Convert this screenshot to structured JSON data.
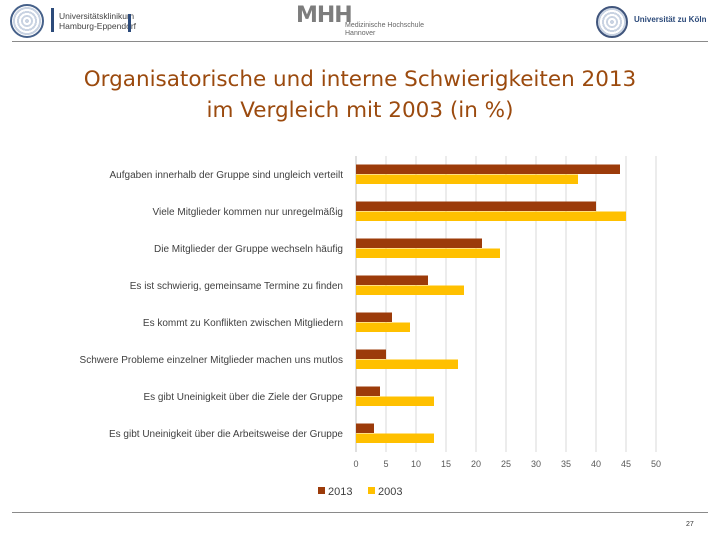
{
  "header": {
    "uke_text": "Universitätsklinikum\nHamburg-Eppendorf",
    "mhh_mark": "MHH",
    "mhh_text": "Medizinische Hochschule\nHannover",
    "koeln_text": "Universität zu Köln"
  },
  "slide": {
    "title_line1": "Organisatorische und interne Schwierigkeiten 2013",
    "title_line2": "im Vergleich mit 2003 (in %)",
    "page_number": "27"
  },
  "colors": {
    "series_2013": "#9c3b0a",
    "series_2003": "#ffc000",
    "title": "#9b4a0e",
    "grid": "#d9d9d9"
  },
  "chart_data": {
    "type": "bar",
    "orientation": "horizontal",
    "title": "Organisatorische und interne Schwierigkeiten 2013 im Vergleich mit 2003 (in %)",
    "categories": [
      "Aufgaben innerhalb der Gruppe sind ungleich verteilt",
      "Viele Mitglieder kommen nur unregelmäßig",
      "Die Mitglieder der Gruppe wechseln häufig",
      "Es ist schwierig, gemeinsame Termine zu finden",
      "Es kommt zu Konflikten zwischen Mitgliedern",
      "Schwere Probleme einzelner Mitglieder machen uns mutlos",
      "Es gibt Uneinigkeit über die Ziele der Gruppe",
      "Es gibt Uneinigkeit über die Arbeitsweise der Gruppe"
    ],
    "series": [
      {
        "name": "2013",
        "values": [
          44,
          40,
          21,
          12,
          6,
          5,
          4,
          3
        ]
      },
      {
        "name": "2003",
        "values": [
          37,
          45,
          24,
          18,
          9,
          17,
          13,
          13
        ]
      }
    ],
    "xlim": [
      0,
      50
    ],
    "xticks": [
      0,
      5,
      10,
      15,
      20,
      25,
      30,
      35,
      40,
      45,
      50
    ],
    "xlabel": "",
    "ylabel": "",
    "grid": true,
    "legend": "bottom-center"
  }
}
